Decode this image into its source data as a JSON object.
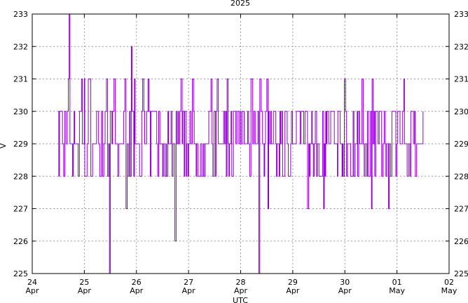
{
  "chart_data": {
    "type": "line",
    "title": "2025",
    "xlabel": "UTC",
    "ylabel": "V",
    "ylim": [
      225,
      233
    ],
    "yticks": [
      225,
      226,
      227,
      228,
      229,
      230,
      231,
      232,
      233
    ],
    "xlim": [
      "2025-04-24",
      "2025-05-02"
    ],
    "xticks": [
      {
        "day": "24",
        "month": "Apr"
      },
      {
        "day": "25",
        "month": "Apr"
      },
      {
        "day": "26",
        "month": "Apr"
      },
      {
        "day": "27",
        "month": "Apr"
      },
      {
        "day": "28",
        "month": "Apr"
      },
      {
        "day": "29",
        "month": "Apr"
      },
      {
        "day": "30",
        "month": "Apr"
      },
      {
        "day": "01",
        "month": "May"
      },
      {
        "day": "02",
        "month": "May"
      }
    ],
    "grid": true,
    "mirror_y_axis": true,
    "series": [
      {
        "color": "#9400d3",
        "style": "step",
        "x_start": "2025-04-24T12:00",
        "x_end": "2025-05-01T12:00",
        "typical_range": [
          228,
          230
        ],
        "min": 225,
        "max": 233
      }
    ]
  }
}
